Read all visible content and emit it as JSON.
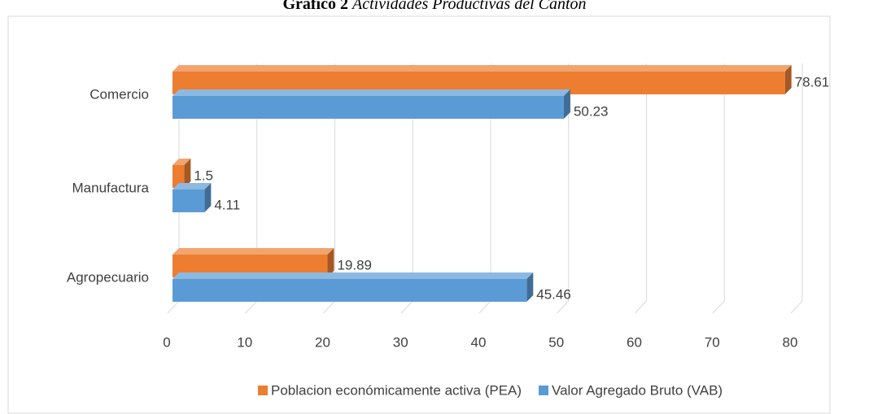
{
  "chart_data": {
    "type": "bar3d_horizontal",
    "title": "Gráfico 2",
    "subtitle": "Actividades Productivas del Cantón",
    "categories": [
      "Agropecuario",
      "Manufactura",
      "Comercio"
    ],
    "series": [
      {
        "name": "Poblacion económicamente activa (PEA)",
        "color": "#ed7d31",
        "values": [
          19.89,
          1.5,
          78.61
        ]
      },
      {
        "name": "Valor Agregado Bruto (VAB)",
        "color": "#5b9bd5",
        "values": [
          45.46,
          4.11,
          50.23
        ]
      }
    ],
    "xlim": [
      0,
      80
    ],
    "xticks": [
      0,
      10,
      20,
      30,
      40,
      50,
      60,
      70,
      80
    ],
    "grid": true,
    "legend": "bottom"
  }
}
